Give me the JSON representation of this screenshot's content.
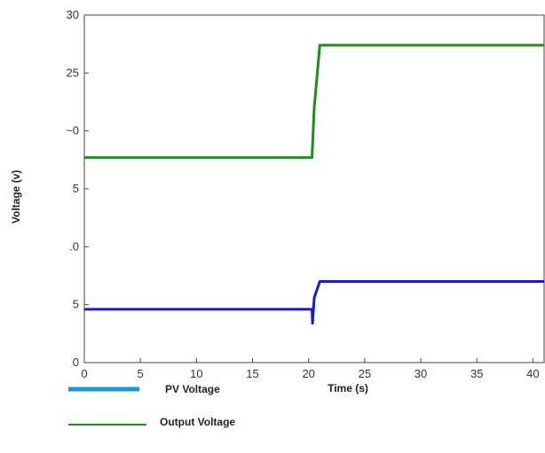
{
  "chart_data": {
    "type": "line",
    "xlabel": "Time (s)",
    "ylabel": "Voltage (v)",
    "xlim": [
      0,
      41
    ],
    "ylim": [
      0,
      30
    ],
    "xticks": [
      "0",
      "5",
      "10",
      "15",
      "20",
      "25",
      "30",
      "35",
      "40"
    ],
    "yticks": [
      "0",
      "5",
      ".0",
      "5",
      "~0",
      "25",
      "30"
    ],
    "grid": false,
    "legend_position": "bottom-left",
    "series": [
      {
        "name": "PV Voltage",
        "color": "#1a1acc",
        "legend_color": "#1a9ad6",
        "x": [
          0,
          20.3,
          20.35,
          20.5,
          21,
          41
        ],
        "y": [
          4.6,
          4.6,
          3.4,
          5.6,
          7.0,
          7.0
        ]
      },
      {
        "name": "Output Voltage",
        "color": "#1e8c1e",
        "legend_color": "#1e8c1e",
        "x": [
          0,
          20.3,
          20.5,
          21,
          41
        ],
        "y": [
          17.7,
          17.7,
          22.0,
          27.4,
          27.4
        ]
      }
    ]
  }
}
